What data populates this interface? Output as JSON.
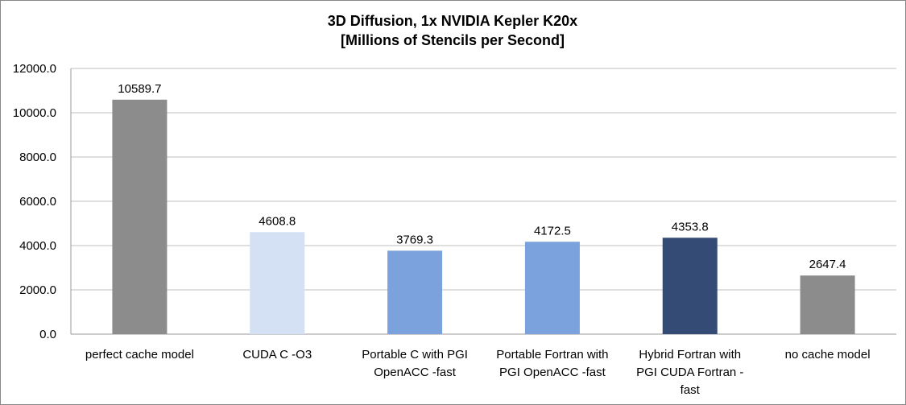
{
  "chart_data": {
    "type": "bar",
    "title_lines": [
      "3D Diffusion, 1x NVIDIA Kepler K20x",
      "[Millions of Stencils per Second]"
    ],
    "categories": [
      [
        "perfect cache model"
      ],
      [
        "CUDA C -O3"
      ],
      [
        "Portable C with PGI",
        "OpenACC -fast"
      ],
      [
        "Portable Fortran with",
        "PGI OpenACC -fast"
      ],
      [
        "Hybrid Fortran with",
        "PGI CUDA Fortran -",
        "fast"
      ],
      [
        "no cache model"
      ]
    ],
    "values": [
      10589.7,
      4608.8,
      3769.3,
      4172.5,
      4353.8,
      2647.4
    ],
    "data_labels": [
      "10589.7",
      "4608.8",
      "3769.3",
      "4172.5",
      "4353.8",
      "2647.4"
    ],
    "colors": [
      "#8c8c8c",
      "#d4e0f3",
      "#7ba2dc",
      "#7ba2dc",
      "#344c75",
      "#8c8c8c"
    ],
    "ylim": [
      0,
      12000
    ],
    "yticks": [
      "0.0",
      "2000.0",
      "4000.0",
      "6000.0",
      "8000.0",
      "10000.0",
      "12000.0"
    ],
    "grid": true,
    "legend": "none"
  }
}
